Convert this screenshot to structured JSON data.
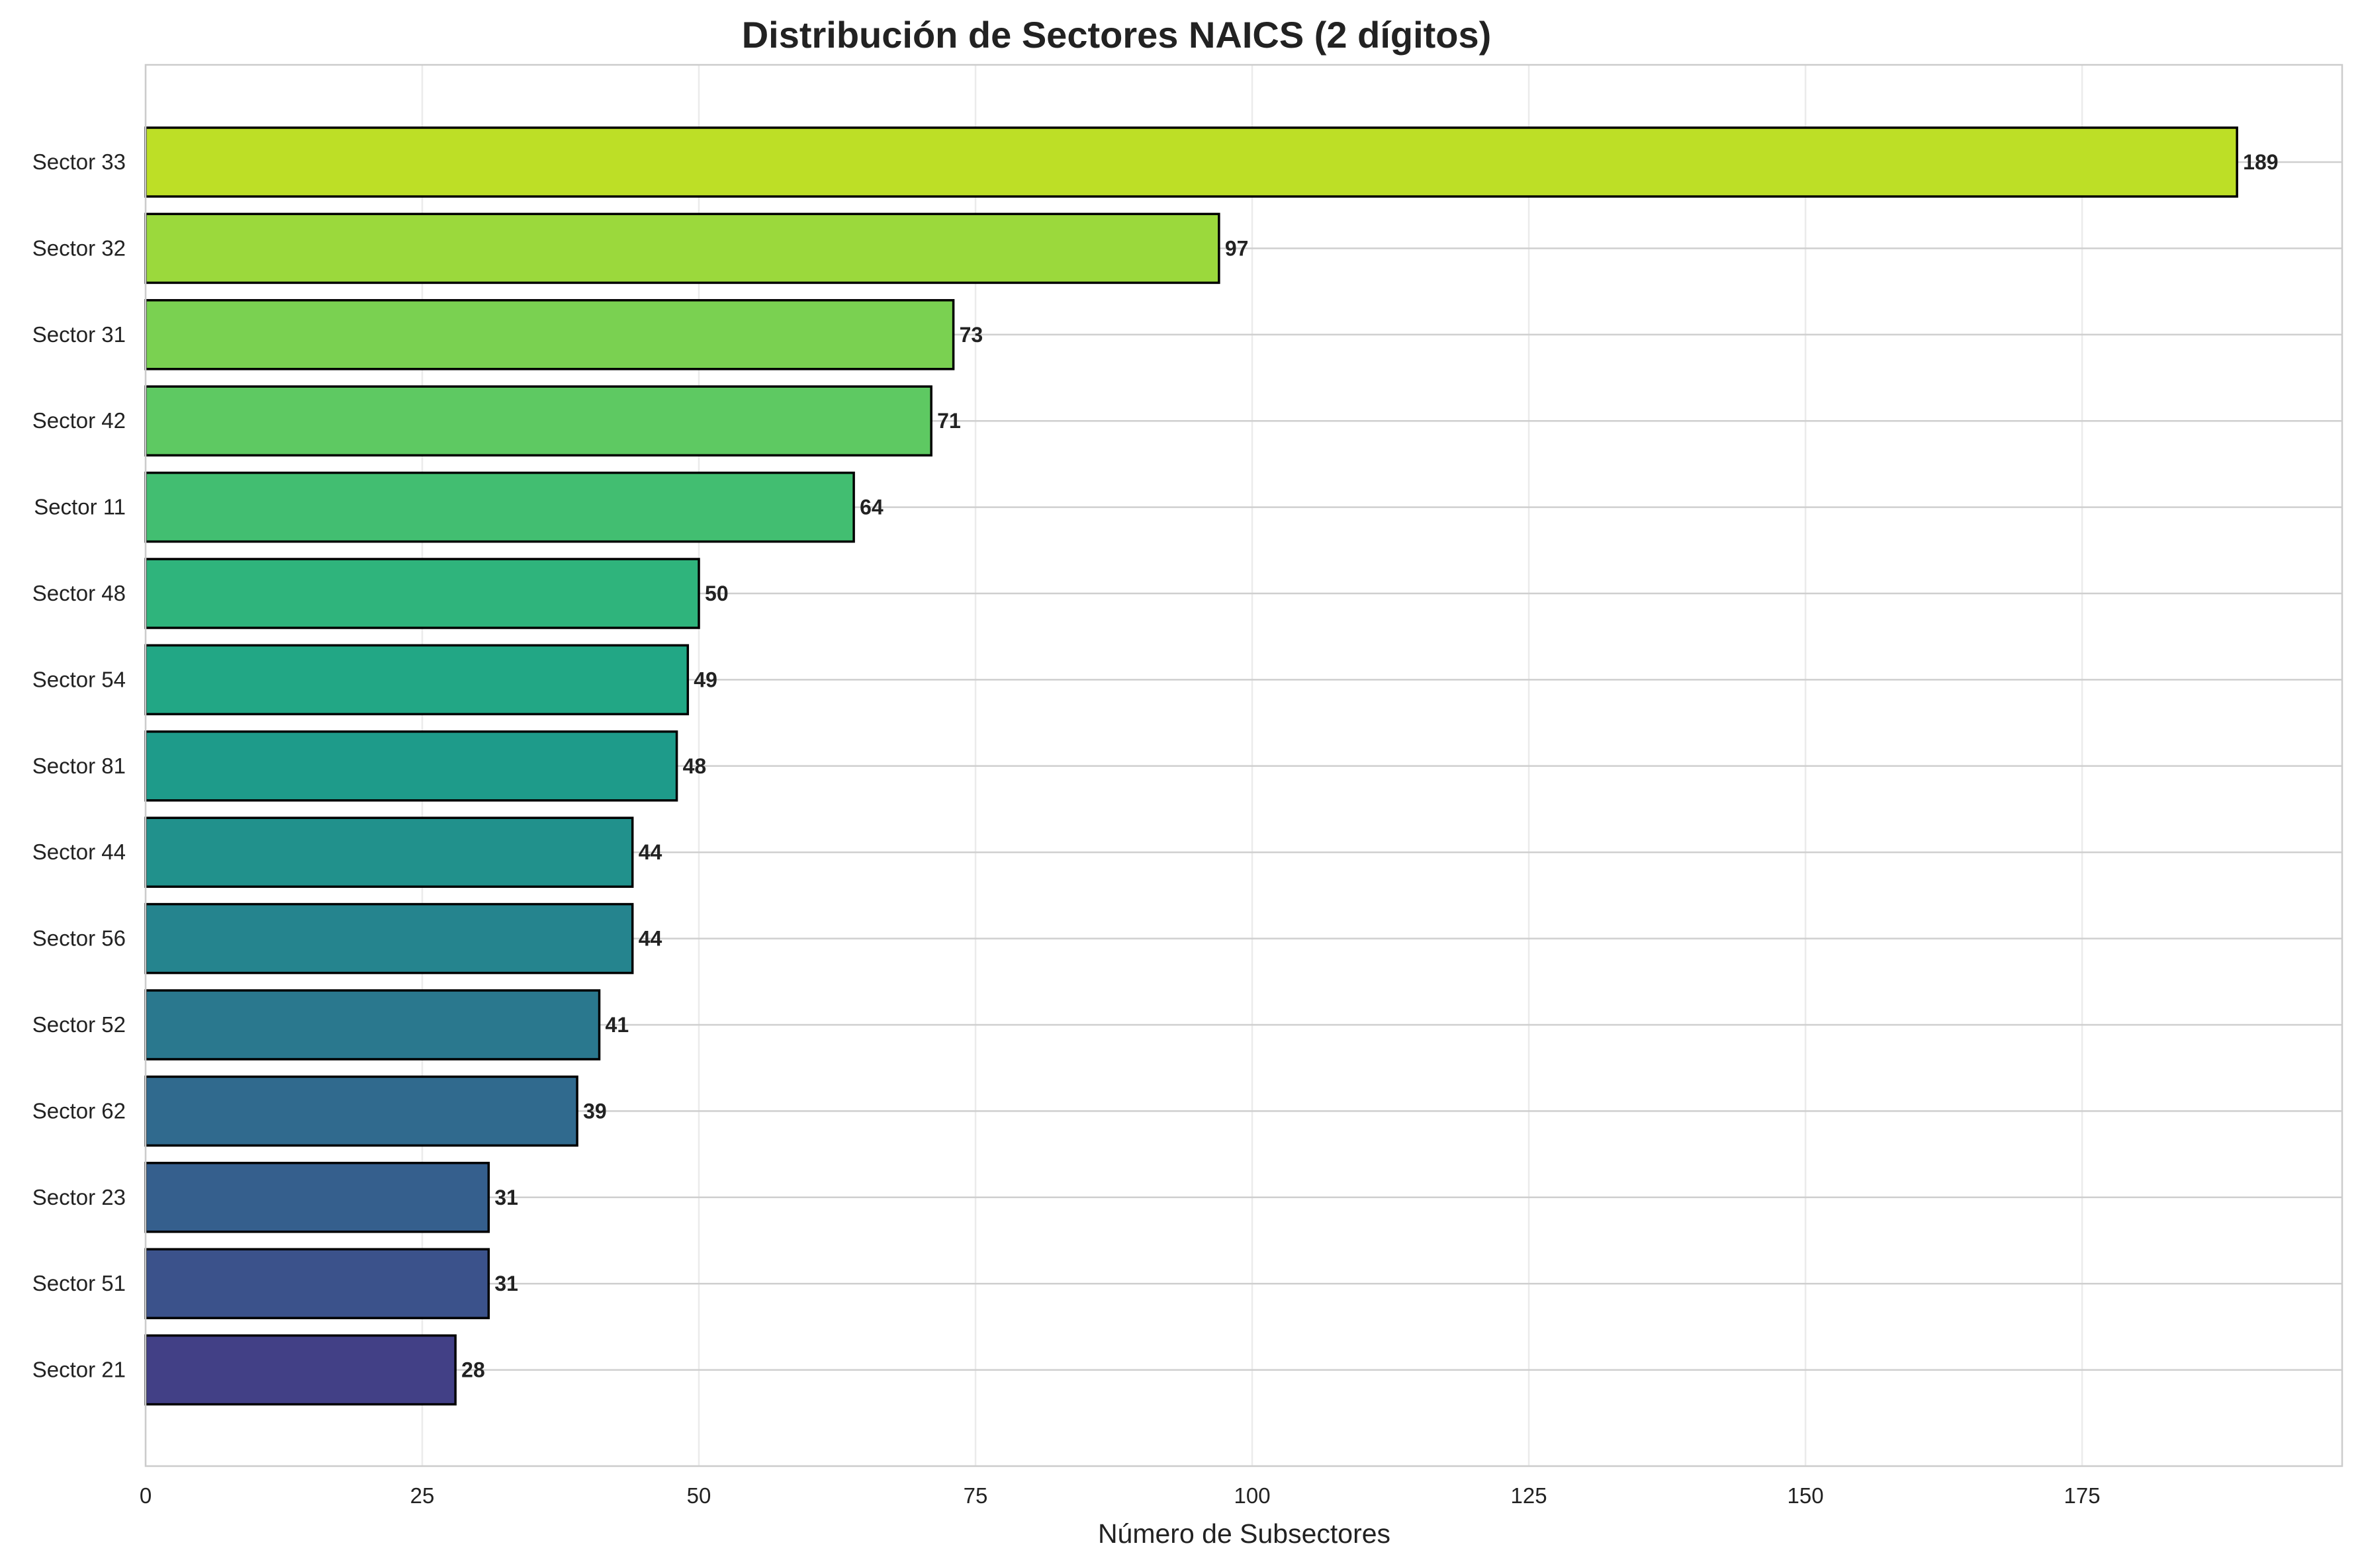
{
  "chart_data": {
    "type": "bar",
    "orientation": "horizontal",
    "title": "Distribución de Sectores NAICS (2 dígitos)",
    "xlabel": "Número de Subsectores",
    "ylabel": "",
    "xlim": [
      0,
      198.5
    ],
    "xticks": [
      0,
      25,
      50,
      75,
      100,
      125,
      150,
      175
    ],
    "grid": true,
    "categories": [
      "Sector 33",
      "Sector 32",
      "Sector 31",
      "Sector 42",
      "Sector 11",
      "Sector 48",
      "Sector 54",
      "Sector 81",
      "Sector 44",
      "Sector 56",
      "Sector 52",
      "Sector 62",
      "Sector 23",
      "Sector 51",
      "Sector 21"
    ],
    "values": [
      189,
      97,
      73,
      71,
      64,
      50,
      49,
      48,
      44,
      44,
      41,
      39,
      31,
      31,
      28
    ],
    "colors": [
      "#bddf26",
      "#9bd93c",
      "#7ad151",
      "#5ec962",
      "#42be71",
      "#2fb47c",
      "#22a785",
      "#1e9b8a",
      "#21918c",
      "#25848e",
      "#2a788e",
      "#306a8e",
      "#355f8d",
      "#3b528b",
      "#424086"
    ]
  }
}
